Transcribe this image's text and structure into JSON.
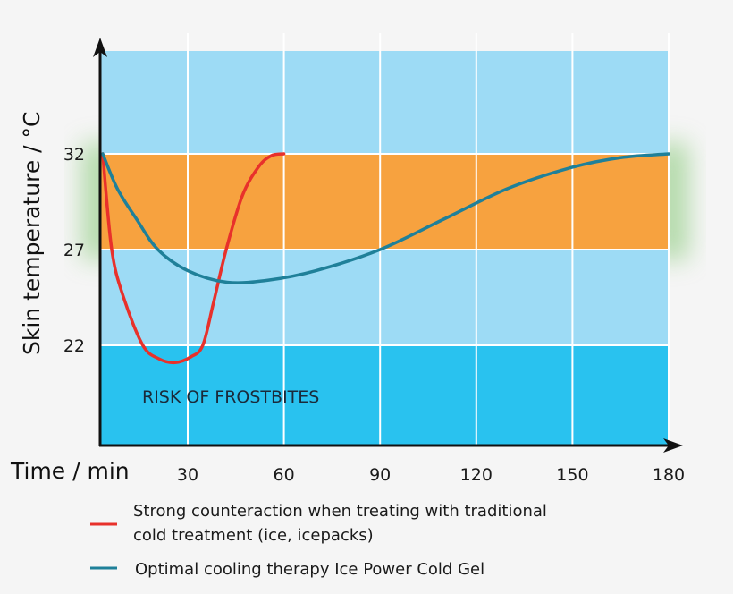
{
  "chart_data": {
    "type": "line",
    "xlabel": "Time / min",
    "ylabel": "Skin temperature / °C",
    "x_ticks": [
      30,
      60,
      90,
      120,
      150,
      180
    ],
    "y_ticks": [
      22,
      27,
      32
    ],
    "xlim": [
      0,
      180
    ],
    "ylim": [
      16.8,
      37.4
    ],
    "grid": true,
    "legend_placement": "bottom",
    "bands": [
      {
        "from": 32,
        "to": 37.4,
        "color": "#9ddbf5"
      },
      {
        "from": 27,
        "to": 32,
        "color": "#f7a23f"
      },
      {
        "from": 22,
        "to": 27,
        "color": "#9ddbf5"
      },
      {
        "from": 16.8,
        "to": 22,
        "color": "#29c2ef",
        "label": "RISK OF FROSTBITES"
      }
    ],
    "series": [
      {
        "name": "Strong counteraction when treating with traditional cold treatment (ice, icepacks)",
        "legend_lines": [
          "Strong counteraction when treating with traditional",
          "cold treatment (ice, icepacks)"
        ],
        "color": "#e8312b",
        "x": [
          3.5,
          6.3,
          10,
          16,
          21,
          26,
          31,
          34.7,
          38,
          42,
          47,
          52,
          56,
          60
        ],
        "y": [
          32,
          27,
          24.5,
          22,
          21.3,
          21.1,
          21.4,
          22,
          24.2,
          27,
          29.8,
          31.3,
          31.9,
          32
        ]
      },
      {
        "name": "Optimal cooling therapy Ice Power Cold Gel",
        "legend_lines": [
          "Optimal cooling therapy Ice Power Cold Gel"
        ],
        "color": "#1f8099",
        "x": [
          3.5,
          8,
          14,
          20.7,
          30,
          42,
          55,
          70,
          90,
          110,
          130,
          150,
          165,
          180
        ],
        "y": [
          32,
          30.2,
          28.6,
          27,
          25.9,
          25.3,
          25.4,
          25.9,
          27,
          28.6,
          30.2,
          31.3,
          31.8,
          32
        ]
      }
    ]
  }
}
